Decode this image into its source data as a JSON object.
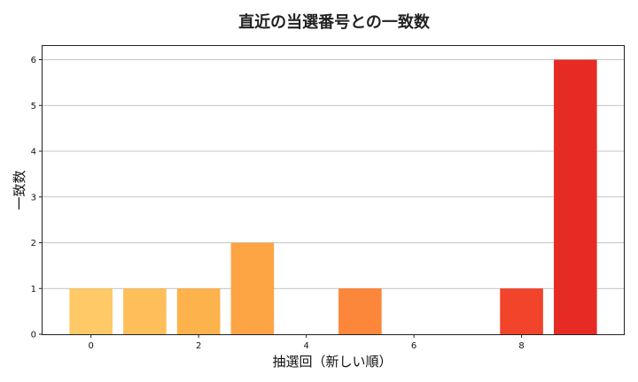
{
  "chart_data": {
    "type": "bar",
    "title": "直近の当選番号との一致数",
    "xlabel": "抽選回（新しい順）",
    "ylabel": "一致数",
    "x": [
      0,
      1,
      2,
      3,
      4,
      5,
      6,
      7,
      8,
      9
    ],
    "values": [
      1,
      1,
      1,
      2,
      0,
      1,
      0,
      0,
      1,
      6
    ],
    "colors": [
      "#fec966",
      "#febf5a",
      "#feb24c",
      "#fda445",
      "#fd9740",
      "#fc863a",
      "#fc7233",
      "#fa5c2e",
      "#f2432b",
      "#e62a24"
    ],
    "xticks": [
      0,
      2,
      4,
      6,
      8
    ],
    "yticks": [
      0,
      1,
      2,
      3,
      4,
      5,
      6
    ],
    "xlim": [
      -0.9,
      9.9
    ],
    "ylim": [
      0,
      6.3
    ],
    "grid": "y"
  }
}
